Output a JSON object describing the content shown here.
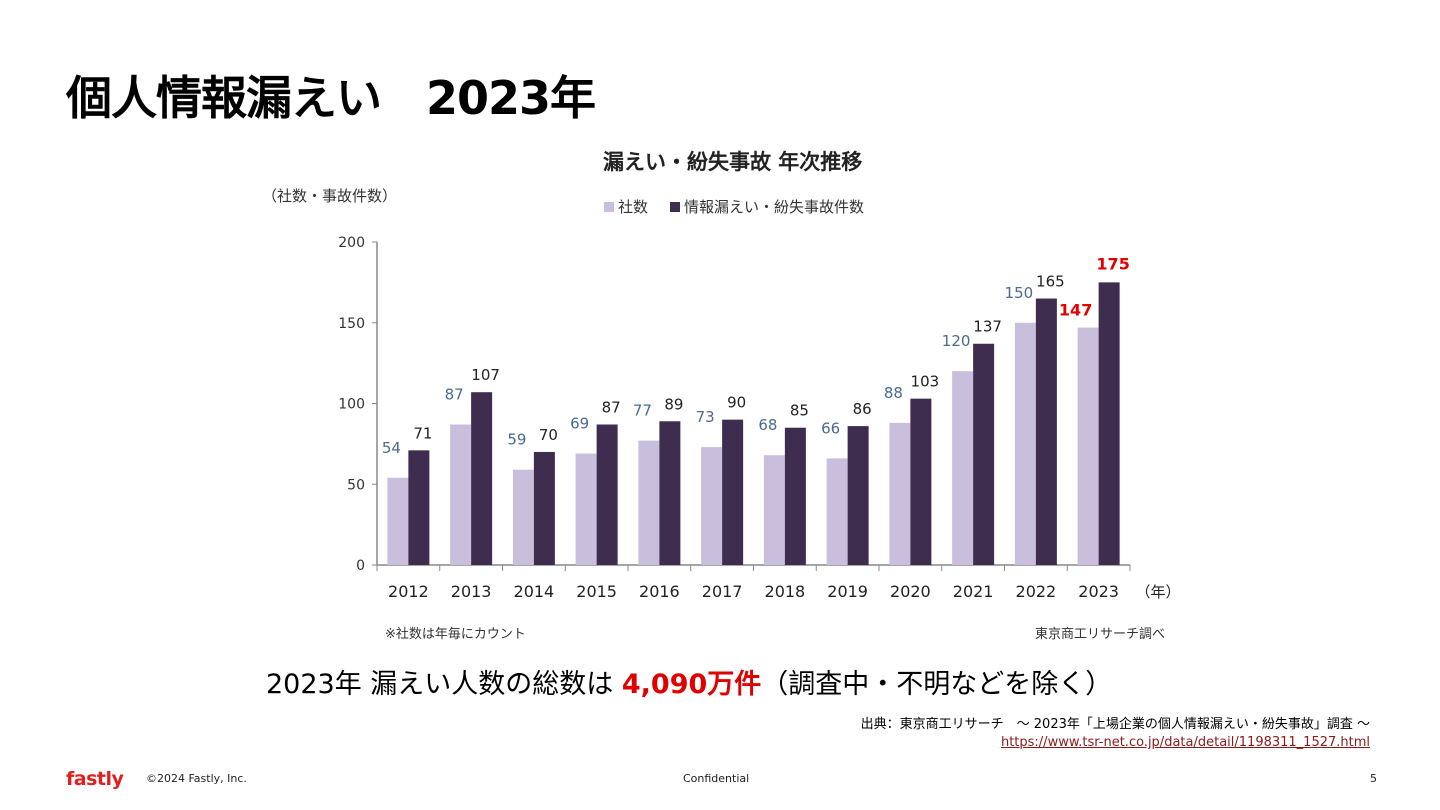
{
  "slide": {
    "title": "個人情報漏えい　2023年",
    "summary_prefix": "2023年 漏えい人数の総数は ",
    "summary_highlight": "4,090万件",
    "summary_suffix": "（調査中・不明などを除く）",
    "source_text": "出典：東京商工リサーチ　～ 2023年「上場企業の個人情報漏えい・紛失事故」調査 ～",
    "source_url": "https://www.tsr-net.co.jp/data/detail/1198311_1527.html"
  },
  "footer": {
    "logo": "fastly",
    "copyright": "©2024 Fastly, Inc.",
    "confidential": "Confidential",
    "page_number": "5"
  },
  "colors": {
    "companies": "#c9bedb",
    "incidents": "#3f2d50",
    "companies_label": "#4a6a8f",
    "incidents_label": "#222222",
    "highlight": "#e00000",
    "axis": "#888888"
  },
  "chart_data": {
    "type": "bar",
    "title": "漏えい・紛失事故  年次推移",
    "ylabel": "（社数・事故件数）",
    "xlabel": "（年）",
    "ylim": [
      0,
      200
    ],
    "yticks": [
      0,
      50,
      100,
      150,
      200
    ],
    "categories": [
      "2012",
      "2013",
      "2014",
      "2015",
      "2016",
      "2017",
      "2018",
      "2019",
      "2020",
      "2021",
      "2022",
      "2023"
    ],
    "series": [
      {
        "name": "社数",
        "values": [
          54,
          87,
          59,
          69,
          77,
          73,
          68,
          66,
          88,
          120,
          150,
          147
        ]
      },
      {
        "name": "情報漏えい・紛失事故件数",
        "values": [
          71,
          107,
          70,
          87,
          89,
          90,
          85,
          86,
          103,
          137,
          165,
          175
        ]
      }
    ],
    "highlighted_category": "2023",
    "legend_position": "top",
    "grid": false,
    "note": "※社数は年毎にカウント",
    "credit": "東京商工リサーチ調べ"
  }
}
